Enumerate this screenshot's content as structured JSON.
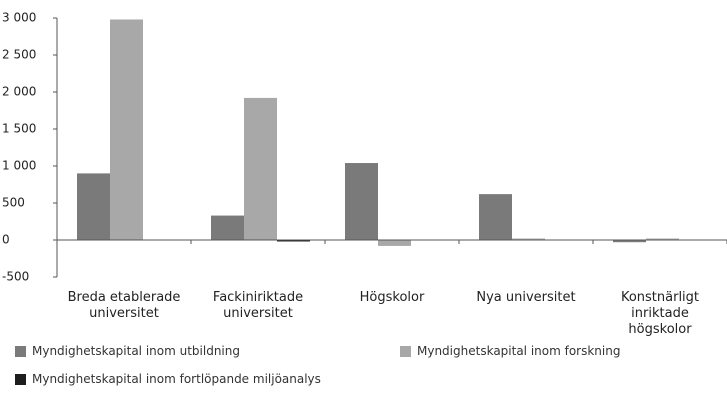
{
  "chart_data": {
    "type": "bar",
    "categories": [
      "Breda etablerade\nuniversitet",
      "Fackiniriktade\nuniversitet",
      "Högskolor",
      "Nya universitet",
      "Konstnärligt\ninriktade\nhögskolor"
    ],
    "series": [
      {
        "name": "Myndighetskapital inom utbildning",
        "color": "#7a7a7a",
        "values": [
          900,
          330,
          1040,
          620,
          -30
        ]
      },
      {
        "name": "Myndighetskapital inom forskning",
        "color": "#a8a8a8",
        "values": [
          2980,
          1920,
          -80,
          20,
          20
        ]
      },
      {
        "name": "Myndighetskapital inom fortlöpande miljöanalys",
        "color": "#1e1e1e",
        "values": [
          0,
          -20,
          0,
          0,
          0
        ]
      }
    ],
    "ylim": [
      -500,
      3000
    ],
    "yticks": [
      -500,
      0,
      500,
      {
        "value": 1000,
        "label": "1 000"
      },
      {
        "value": 1500,
        "label": "1 500"
      },
      {
        "value": 2000,
        "label": "2 000"
      },
      {
        "value": 2500,
        "label": "2 500"
      },
      {
        "value": 3000,
        "label": "3 000"
      }
    ],
    "grid": false
  }
}
